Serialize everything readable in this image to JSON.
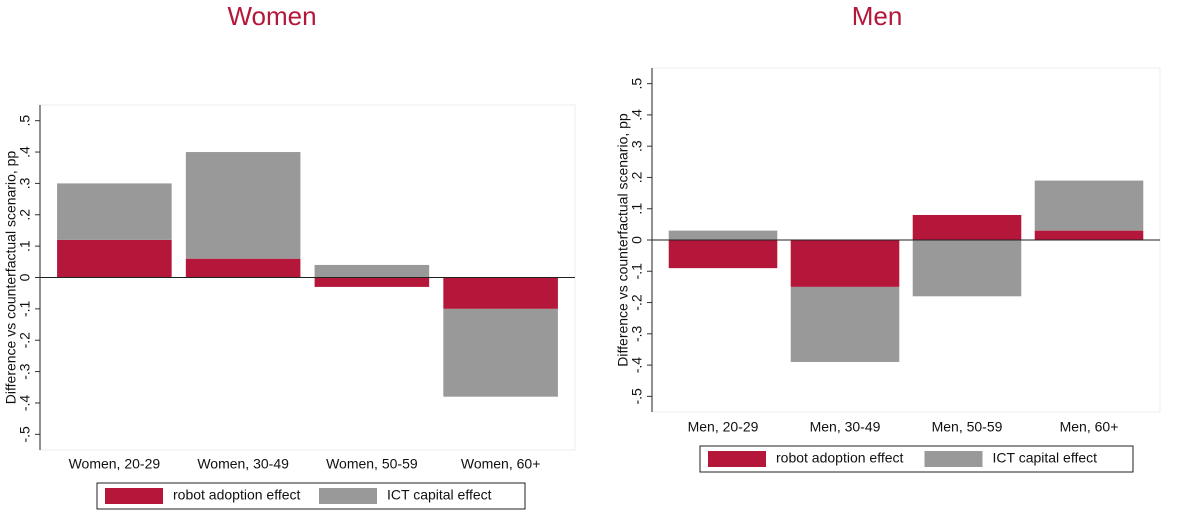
{
  "chart_data": [
    {
      "type": "bar",
      "stacked": true,
      "title": "Women",
      "y_label": "Difference vs counterfactual scenario, pp",
      "categories": [
        "Women, 20-29",
        "Women, 30-49",
        "Women, 50-59",
        "Women, 60+"
      ],
      "series": [
        {
          "name": "robot adoption effect",
          "color": "#b5173a",
          "values": [
            0.12,
            0.06,
            -0.03,
            -0.1
          ]
        },
        {
          "name": "ICT capital effect",
          "color": "#999999",
          "values": [
            0.18,
            0.34,
            0.04,
            -0.28
          ]
        }
      ],
      "ylim": [
        -0.55,
        0.55
      ],
      "yticks": [
        {
          "value": -0.5,
          "label": "-.5"
        },
        {
          "value": -0.4,
          "label": "-.4"
        },
        {
          "value": -0.3,
          "label": "-.3"
        },
        {
          "value": -0.2,
          "label": "-.2"
        },
        {
          "value": -0.1,
          "label": "-.1"
        },
        0,
        {
          "value": 0.1,
          "label": ".1"
        },
        {
          "value": 0.2,
          "label": ".2"
        },
        {
          "value": 0.3,
          "label": ".3"
        },
        {
          "value": 0.4,
          "label": ".4"
        },
        {
          "value": 0.5,
          "label": ".5"
        }
      ]
    },
    {
      "type": "bar",
      "stacked": true,
      "title": "Men",
      "y_label": "Difference vs counterfactual scenario, pp",
      "categories": [
        "Men, 20-29",
        "Men, 30-49",
        "Men, 50-59",
        "Men, 60+"
      ],
      "series": [
        {
          "name": "robot adoption effect",
          "color": "#b5173a",
          "values": [
            -0.09,
            -0.15,
            0.08,
            0.03
          ]
        },
        {
          "name": "ICT capital effect",
          "color": "#999999",
          "values": [
            0.03,
            -0.24,
            -0.18,
            0.16
          ]
        }
      ],
      "ylim": [
        -0.55,
        0.55
      ],
      "yticks": [
        {
          "value": -0.5,
          "label": "-.5"
        },
        {
          "value": -0.4,
          "label": "-.4"
        },
        {
          "value": -0.3,
          "label": "-.3"
        },
        {
          "value": -0.2,
          "label": "-.2"
        },
        {
          "value": -0.1,
          "label": "-.1"
        },
        0,
        {
          "value": 0.1,
          "label": ".1"
        },
        {
          "value": 0.2,
          "label": ".2"
        },
        {
          "value": 0.3,
          "label": ".3"
        },
        {
          "value": 0.4,
          "label": ".4"
        },
        {
          "value": 0.5,
          "label": ".5"
        }
      ]
    }
  ]
}
